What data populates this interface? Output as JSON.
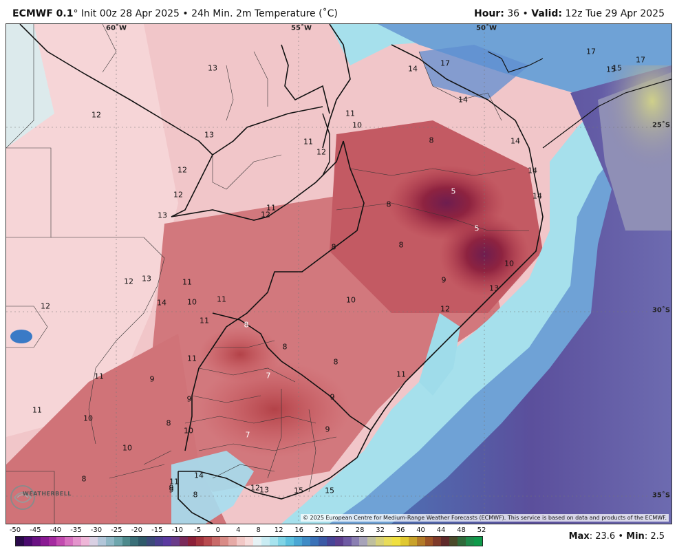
{
  "header": {
    "model": "ECMWF 0.1",
    "deg": "°",
    "init_text": "Init 00z 28 Apr 2025",
    "sep": "•",
    "product": "24h Min. 2m Temperature (˚C)",
    "hour_label": "Hour:",
    "hour_value": "36",
    "valid_label": "Valid:",
    "valid_value": "12z Tue 29 Apr 2025"
  },
  "map": {
    "coords": {
      "lon_60w": "60˚W",
      "lon_55w": "55˚W",
      "lon_50w": "50˚W",
      "lat_25s": "25˚S",
      "lat_30s": "30˚S",
      "lat_35s": "35˚S"
    },
    "labels": [
      {
        "t": "13",
        "c": "d"
      },
      {
        "t": "12",
        "c": "d"
      },
      {
        "t": "13",
        "c": "d"
      },
      {
        "t": "12",
        "c": "d"
      },
      {
        "t": "12",
        "c": "d"
      },
      {
        "t": "13",
        "c": "d"
      },
      {
        "t": "11",
        "c": "d"
      },
      {
        "t": "12",
        "c": "d"
      },
      {
        "t": "11",
        "c": "d"
      },
      {
        "t": "10",
        "c": "d"
      },
      {
        "t": "11",
        "c": "d"
      },
      {
        "t": "12",
        "c": "d"
      },
      {
        "t": "14",
        "c": "d"
      },
      {
        "t": "17",
        "c": "d"
      },
      {
        "t": "17",
        "c": "d"
      },
      {
        "t": "15",
        "c": "d"
      },
      {
        "t": "15",
        "c": "d"
      },
      {
        "t": "17",
        "c": "d"
      },
      {
        "t": "14",
        "c": "d"
      },
      {
        "t": "8",
        "c": "d"
      },
      {
        "t": "14",
        "c": "d"
      },
      {
        "t": "14",
        "c": "d"
      },
      {
        "t": "5",
        "c": "w"
      },
      {
        "t": "14",
        "c": "d"
      },
      {
        "t": "8",
        "c": "d"
      },
      {
        "t": "5",
        "c": "w"
      },
      {
        "t": "10",
        "c": "d"
      },
      {
        "t": "8",
        "c": "d"
      },
      {
        "t": "8",
        "c": "d"
      },
      {
        "t": "10",
        "c": "d"
      },
      {
        "t": "9",
        "c": "d"
      },
      {
        "t": "12",
        "c": "d"
      },
      {
        "t": "13",
        "c": "d"
      },
      {
        "t": "11",
        "c": "d"
      },
      {
        "t": "12",
        "c": "d"
      },
      {
        "t": "10",
        "c": "d"
      },
      {
        "t": "11",
        "c": "d"
      },
      {
        "t": "11",
        "c": "d"
      },
      {
        "t": "8",
        "c": "w"
      },
      {
        "t": "8",
        "c": "d"
      },
      {
        "t": "8",
        "c": "d"
      },
      {
        "t": "11",
        "c": "d"
      },
      {
        "t": "11",
        "c": "d"
      },
      {
        "t": "9",
        "c": "d"
      },
      {
        "t": "7",
        "c": "w"
      },
      {
        "t": "11",
        "c": "d"
      },
      {
        "t": "9",
        "c": "d"
      },
      {
        "t": "9",
        "c": "d"
      },
      {
        "t": "11",
        "c": "d"
      },
      {
        "t": "10",
        "c": "d"
      },
      {
        "t": "8",
        "c": "d"
      },
      {
        "t": "10",
        "c": "d"
      },
      {
        "t": "7",
        "c": "w"
      },
      {
        "t": "9",
        "c": "d"
      },
      {
        "t": "10",
        "c": "d"
      },
      {
        "t": "8",
        "c": "d"
      },
      {
        "t": "9",
        "c": "d"
      },
      {
        "t": "11",
        "c": "d"
      },
      {
        "t": "14",
        "c": "d"
      },
      {
        "t": "9",
        "c": "d"
      },
      {
        "t": "8",
        "c": "d"
      },
      {
        "t": "12",
        "c": "d"
      },
      {
        "t": "13",
        "c": "d"
      },
      {
        "t": "15",
        "c": "d"
      },
      {
        "t": "15",
        "c": "d"
      },
      {
        "t": "12",
        "c": "d"
      },
      {
        "t": "13",
        "c": "d"
      },
      {
        "t": "14",
        "c": "d"
      }
    ],
    "copyright": "© 2025 European Centre for Medium-Range Weather Forecasts (ECMWF). This service is based on data and products of the ECMWF.",
    "logo_text": "WEATHERBELL"
  },
  "colorbar": {
    "ticks": [
      "-50",
      "-45",
      "-40",
      "-35",
      "-30",
      "-25",
      "-20",
      "-15",
      "-10",
      "-5",
      "0",
      "4",
      "8",
      "12",
      "16",
      "20",
      "24",
      "28",
      "32",
      "36",
      "40",
      "44",
      "48",
      "52"
    ],
    "colors": [
      "#2a0a4a",
      "#4a0a6e",
      "#6a1283",
      "#8a1a93",
      "#a52aa0",
      "#c24aaf",
      "#d770bf",
      "#e494cc",
      "#efb6d8",
      "#d9d0e3",
      "#b2c6d9",
      "#8fb8c6",
      "#6ea6ad",
      "#4d8a8c",
      "#3a6f78",
      "#2f5a6a",
      "#3b4a7a",
      "#4a3f8f",
      "#5b3aa0",
      "#6a3b8a",
      "#7a2a5a",
      "#8c2038",
      "#a3333d",
      "#b84b4f",
      "#c96a69",
      "#d98b86",
      "#e6aaa6",
      "#f2c8c6",
      "#f7dcdb",
      "#e6f2f5",
      "#c9ecf3",
      "#a6e3ee",
      "#7fd4e6",
      "#5dc1df",
      "#4aa7d4",
      "#3f8cc6",
      "#3a72b8",
      "#3b5aa6",
      "#474597",
      "#5d3f8f",
      "#6e5aa3",
      "#8a7fb2",
      "#a7a3b9",
      "#bfbf9e",
      "#d6d07a",
      "#e8dc5a",
      "#f0e040",
      "#e0c830",
      "#c9a22a",
      "#b37a28",
      "#9d5426",
      "#7f3a2a",
      "#5f2a2a",
      "#4a4a2a",
      "#2f6a3a",
      "#1f8a4a",
      "#0f9a4a"
    ]
  },
  "stats": {
    "max_label": "Max",
    "max_value": ": 23.6",
    "sep": "•",
    "min_label": "Min",
    "min_value": ": 2.5"
  }
}
